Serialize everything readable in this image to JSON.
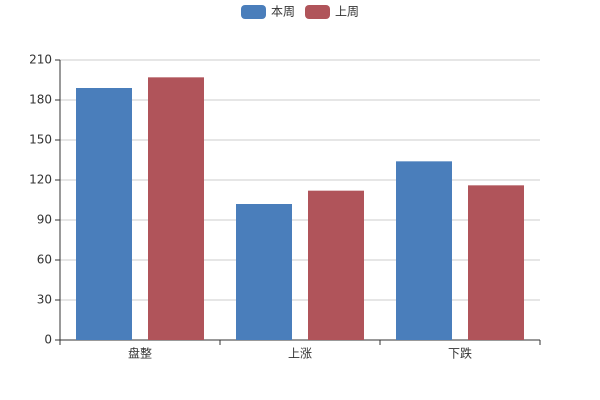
{
  "chart_data": {
    "type": "bar",
    "categories": [
      "盘整",
      "上涨",
      "下跌"
    ],
    "series": [
      {
        "name": "本周",
        "color": "#4a7ebb",
        "values": [
          189,
          102,
          134
        ]
      },
      {
        "name": "上周",
        "color": "#b0545a",
        "values": [
          197,
          112,
          116
        ]
      }
    ],
    "ylim": [
      0,
      210
    ],
    "yticks": [
      0,
      30,
      60,
      90,
      120,
      150,
      180,
      210
    ],
    "grid": true,
    "legend": "top"
  }
}
